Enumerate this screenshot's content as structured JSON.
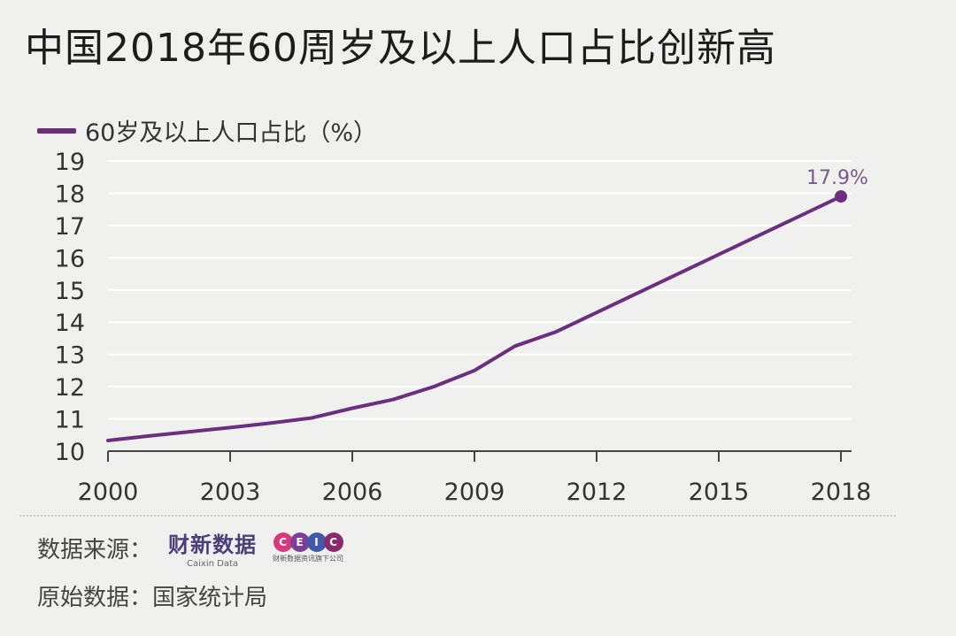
{
  "title": "中国2018年60周岁及以上人口占比创新高",
  "colors": {
    "line": "#6c2e7e",
    "grid": "#ffffff",
    "axis": "#444444",
    "annotation": "#7a5a8a"
  },
  "chart_data": {
    "type": "line",
    "title": "中国2018年60周岁及以上人口占比创新高",
    "xlabel": "",
    "ylabel": "",
    "xlim": [
      2000,
      2018
    ],
    "ylim": [
      10,
      19
    ],
    "grid": true,
    "legend_position": "top-left",
    "x_ticks": [
      "2000",
      "2003",
      "2006",
      "2009",
      "2012",
      "2015",
      "2018"
    ],
    "y_ticks": [
      "10",
      "11",
      "12",
      "13",
      "14",
      "15",
      "16",
      "17",
      "18",
      "19"
    ],
    "series": [
      {
        "name": "60岁及以上人口占比（%）",
        "x": [
          2000,
          2001,
          2002,
          2003,
          2004,
          2005,
          2006,
          2007,
          2008,
          2009,
          2010,
          2011,
          2012,
          2013,
          2014,
          2015,
          2016,
          2017,
          2018
        ],
        "values": [
          10.33,
          10.47,
          10.6,
          10.73,
          10.87,
          11.03,
          11.33,
          11.6,
          12.0,
          12.5,
          13.26,
          13.7,
          14.3,
          14.9,
          15.5,
          16.1,
          16.7,
          17.3,
          17.9
        ]
      }
    ],
    "annotations": [
      {
        "x": 2018,
        "y": 17.9,
        "text": "17.9%"
      }
    ]
  },
  "footer": {
    "source_label": "数据来源：",
    "logo_caixin_cn": "财新数据",
    "logo_caixin_en": "Caixin Data",
    "logo_ceic_letters": [
      "C",
      "E",
      "I",
      "C"
    ],
    "logo_ceic_sub": "财新数据资讯旗下公司",
    "origin": "原始数据：国家统计局"
  }
}
